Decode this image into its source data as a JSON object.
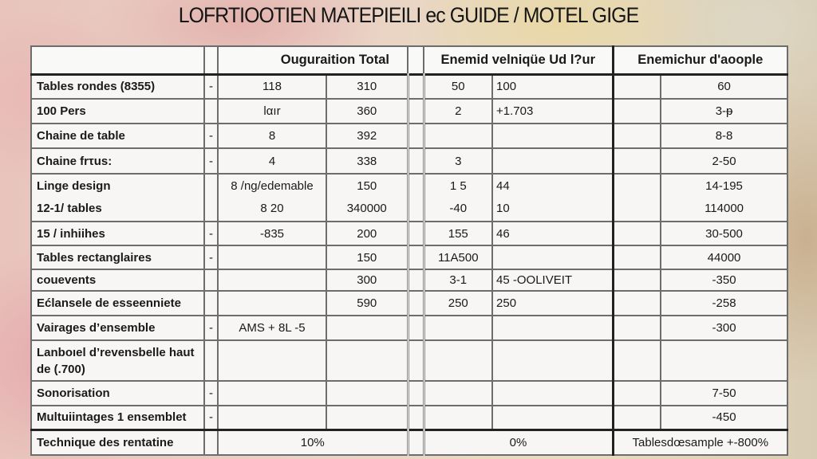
{
  "title": "LOFRTIOOTIEN MATEPIEILI ec GUIDE / MOTEL GIGE",
  "headers": [
    "",
    "",
    "Ouguraition Total",
    "Enemid velniqüe Ud l?ur",
    "Enemichur d'aoople"
  ],
  "rows": [
    {
      "label": "Tables rondes (8355)",
      "dash": "-",
      "a": "118",
      "b": "310",
      "c": "50",
      "d": "100",
      "e": "",
      "f": "60"
    },
    {
      "label": "100 Pers",
      "dash": "",
      "a": "lαır",
      "b": "360",
      "c": "2",
      "d": "+1.703",
      "e": "",
      "f": "3-ᵽ"
    },
    {
      "label": "Chaine de table",
      "dash": "-",
      "a": "8",
      "b": "392",
      "c": "",
      "d": "",
      "e": "",
      "f": "8-8"
    },
    {
      "label": "Chaine frτus:",
      "dash": "-",
      "a": "4",
      "b": "338",
      "c": "3",
      "d": "",
      "e": "",
      "f": "2-50"
    },
    {
      "label": "Linge design\n12-1/ tables",
      "dash": "",
      "a": "8 /ng/edemable\n8 20",
      "b": "150\n340000",
      "c": "1 5\n-40",
      "d": "44\n10",
      "e": "",
      "f": "14-195\n114000"
    },
    {
      "label": "15 / inhiihes",
      "dash": "-",
      "a": "-835",
      "b": "200",
      "c": "155",
      "d": "46",
      "e": "",
      "f": "30-500"
    },
    {
      "label": "Tables rectanglaires",
      "dash": "-",
      "a": "",
      "b": "150",
      "c": "11A500",
      "d": "",
      "e": "",
      "f": "44000"
    },
    {
      "label": "couevents",
      "dash": "",
      "a": "",
      "b": "300",
      "c": "3-1",
      "d": "45 -OOLIVEIT",
      "e": "",
      "f": "-350"
    },
    {
      "label": "Ećlansele de esseenniete",
      "dash": "",
      "a": "",
      "b": "590",
      "c": "250",
      "d": "250",
      "e": "",
      "f": "-258"
    },
    {
      "label": "Vairages d’ensemble",
      "dash": "-",
      "a": "AMS + 8L -5",
      "b": "",
      "c": "",
      "d": "",
      "e": "",
      "f": "-300"
    },
    {
      "label": "Lanboıel d’revensbelle haut de (.700)",
      "dash": "",
      "a": "",
      "b": "",
      "c": "",
      "d": "",
      "e": "",
      "f": ""
    },
    {
      "label": "Sonorisation",
      "dash": "-",
      "a": "",
      "b": "",
      "c": "",
      "d": "",
      "e": "",
      "f": "7-50"
    },
    {
      "label": "Multuiintages 1 ensemblet",
      "dash": "-",
      "a": "",
      "b": "",
      "c": "",
      "d": "",
      "e": "",
      "f": "-450"
    }
  ],
  "footer": {
    "label": "Technique des rentatine",
    "ab": "10%",
    "cd": "0%",
    "ef": "Tablesdœsample +-800%"
  }
}
